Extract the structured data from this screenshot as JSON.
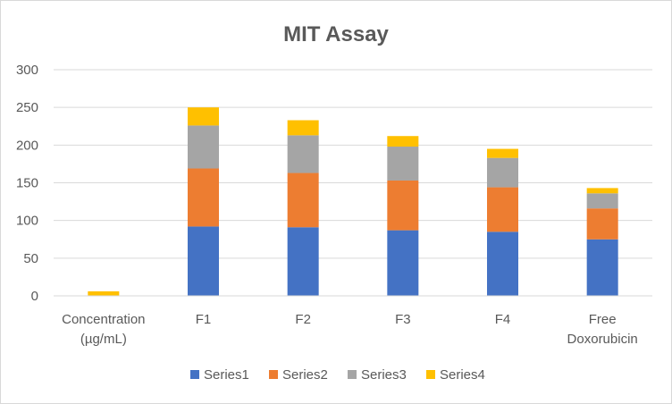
{
  "chart_data": {
    "type": "bar",
    "stacked": true,
    "title": "MIT Assay",
    "xlabel": "",
    "ylabel": "",
    "ylim": [
      0,
      300
    ],
    "yticks": [
      0,
      50,
      100,
      150,
      200,
      250,
      300
    ],
    "grid": true,
    "legend_position": "bottom",
    "categories": [
      [
        "Concentration",
        "(µg/mL)"
      ],
      [
        "F1"
      ],
      [
        "F2"
      ],
      [
        "F3"
      ],
      [
        "F4"
      ],
      [
        "Free",
        "Doxorubicin"
      ]
    ],
    "series": [
      {
        "name": "Series1",
        "color": "#4472c4",
        "values": [
          0,
          92,
          91,
          87,
          85,
          75
        ]
      },
      {
        "name": "Series2",
        "color": "#ed7d31",
        "values": [
          0,
          77,
          72,
          66,
          59,
          41
        ]
      },
      {
        "name": "Series3",
        "color": "#a5a5a5",
        "values": [
          0,
          57,
          50,
          45,
          39,
          20
        ]
      },
      {
        "name": "Series4",
        "color": "#ffc000",
        "values": [
          6,
          24,
          20,
          14,
          12,
          7
        ]
      }
    ]
  }
}
